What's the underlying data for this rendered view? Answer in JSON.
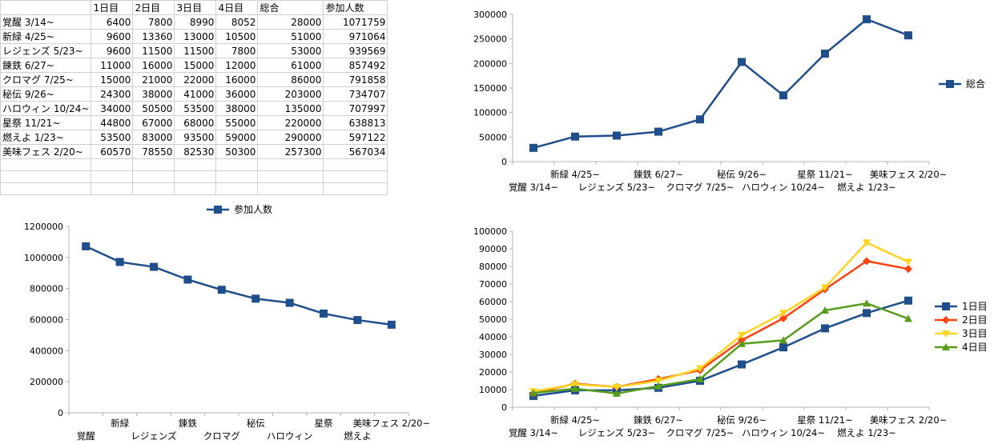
{
  "sheet": {
    "headers": [
      "",
      "1日目",
      "2日目",
      "3日目",
      "4日目",
      "総合",
      "参加人数"
    ],
    "rows": [
      [
        "覚醒 3/14~",
        "6400",
        "7800",
        "8990",
        "8052",
        "28000",
        "1071759"
      ],
      [
        "新緑 4/25~",
        "9600",
        "13360",
        "13000",
        "10500",
        "51000",
        "971064"
      ],
      [
        "レジェンズ  5/23~",
        "9600",
        "11500",
        "11500",
        "7800",
        "53000",
        "939569"
      ],
      [
        "錬鉄 6/27~",
        "11000",
        "16000",
        "15000",
        "12000",
        "61000",
        "857492"
      ],
      [
        "クロマグ 7/25~",
        "15000",
        "21000",
        "22000",
        "16000",
        "86000",
        "791858"
      ],
      [
        "秘伝 9/26~",
        "24300",
        "38000",
        "41000",
        "36000",
        "203000",
        "734707"
      ],
      [
        "ハロウィン 10/24~",
        "34000",
        "50500",
        "53500",
        "38000",
        "135000",
        "707997"
      ],
      [
        "星祭 11/21~",
        "44800",
        "67000",
        "68000",
        "55000",
        "220000",
        "638813"
      ],
      [
        "燃えよ 1/23~",
        "53500",
        "83000",
        "93500",
        "59000",
        "290000",
        "597122"
      ],
      [
        "美味フェス 2/20~",
        "60570",
        "78550",
        "82530",
        "50300",
        "257300",
        "567034"
      ]
    ]
  },
  "chart_data": [
    {
      "type": "line",
      "categories": [
        "覚醒  3/14~",
        "新緑  4/25~",
        "レジェンズ  5/23~",
        "錬鉄  6/27~",
        "クロマグ  7/25~",
        "秘伝  9/26~",
        "ハロウィン  10/24~",
        "星祭  11/21~",
        "燃えよ 1/23~",
        "美味フェス 2/20~"
      ],
      "series": [
        {
          "name": "総合",
          "values": [
            28000,
            51000,
            53000,
            61000,
            86000,
            203000,
            135000,
            220000,
            290000,
            257300
          ]
        }
      ],
      "ylim": [
        0,
        300000
      ],
      "yticks": [
        "0",
        "50000",
        "100000",
        "150000",
        "200000",
        "250000",
        "300000"
      ],
      "legend": "right",
      "grid": false,
      "colors": [
        "#1f4e8c"
      ]
    },
    {
      "type": "line",
      "categories": [
        "覚醒",
        "新緑",
        "レジェンズ",
        "錬鉄",
        "クロマグ",
        "秘伝",
        "ハロウィン",
        "星祭",
        "燃えよ",
        "美味フェス 2/20~"
      ],
      "series": [
        {
          "name": "参加人数",
          "values": [
            1071759,
            971064,
            939569,
            857492,
            791858,
            734707,
            707997,
            638813,
            597122,
            567034
          ]
        }
      ],
      "ylim": [
        0,
        1200000
      ],
      "yticks": [
        "0",
        "200000",
        "400000",
        "600000",
        "800000",
        "1000000",
        "1200000"
      ],
      "legend": "top",
      "grid": false,
      "colors": [
        "#1f4e8c"
      ]
    },
    {
      "type": "line",
      "categories": [
        "覚醒  3/14~",
        "新緑  4/25~",
        "レジェンズ  5/23~",
        "錬鉄  6/27~",
        "クロマグ  7/25~",
        "秘伝  9/26~",
        "ハロウィン  10/24~",
        "星祭  11/21~",
        "燃えよ 1/23~",
        "美味フェス 2/20~"
      ],
      "series": [
        {
          "name": "1日目",
          "values": [
            6400,
            9600,
            9600,
            11000,
            15000,
            24300,
            34000,
            44800,
            53500,
            60570
          ]
        },
        {
          "name": "2日目",
          "values": [
            7800,
            13360,
            11500,
            16000,
            21000,
            38000,
            50500,
            67000,
            83000,
            78550
          ]
        },
        {
          "name": "3日目",
          "values": [
            8990,
            13000,
            11500,
            15000,
            22000,
            41000,
            53500,
            68000,
            93500,
            82530
          ]
        },
        {
          "name": "4日目",
          "values": [
            8052,
            10500,
            7800,
            12000,
            16000,
            36000,
            38000,
            55000,
            59000,
            50300
          ]
        }
      ],
      "ylim": [
        0,
        100000
      ],
      "yticks": [
        "0",
        "10000",
        "20000",
        "30000",
        "40000",
        "50000",
        "60000",
        "70000",
        "80000",
        "90000",
        "100000"
      ],
      "legend": "right",
      "grid": false,
      "colors": [
        "#1f4e8c",
        "#ff420e",
        "#ffd320",
        "#579d1c"
      ],
      "markers": [
        "square",
        "diamond",
        "triangle-down",
        "triangle-up"
      ]
    }
  ]
}
